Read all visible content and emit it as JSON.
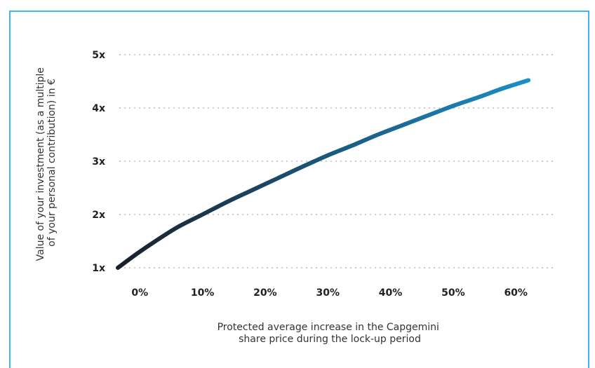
{
  "chart_data": {
    "type": "line",
    "title": "",
    "ylabel_lines": [
      "Value of your investment (as a multiple",
      "of your personal contribution) in €"
    ],
    "xlabel_lines": [
      "Protected average increase in the Capgemini",
      "share price during the lock-up period"
    ],
    "x_tick_labels": [
      "0%",
      "10%",
      "20%",
      "30%",
      "40%",
      "50%",
      "60%"
    ],
    "x_ticks": [
      0,
      10,
      20,
      30,
      40,
      50,
      60
    ],
    "y_tick_labels": [
      "1x",
      "2x",
      "3x",
      "4x",
      "5x"
    ],
    "y_ticks": [
      1,
      2,
      3,
      4,
      5
    ],
    "ylim": [
      1,
      5
    ],
    "xlim": [
      -3.5,
      63
    ],
    "grid": "horizontal dotted",
    "colors": {
      "line_start": "#1a1f2b",
      "line_end": "#1b8ec8",
      "grid": "#bbbbbb",
      "frame": "#3fb6e6"
    },
    "series": [
      {
        "x": [
          -3.5,
          -0.5,
          2.5,
          6,
          10,
          14,
          18,
          22,
          26,
          30,
          34,
          38,
          42,
          46,
          50,
          54,
          58,
          62
        ],
        "y": [
          1.0,
          1.26,
          1.5,
          1.76,
          2.0,
          2.24,
          2.46,
          2.68,
          2.9,
          3.11,
          3.3,
          3.5,
          3.68,
          3.86,
          4.04,
          4.2,
          4.37,
          4.52
        ]
      }
    ]
  }
}
